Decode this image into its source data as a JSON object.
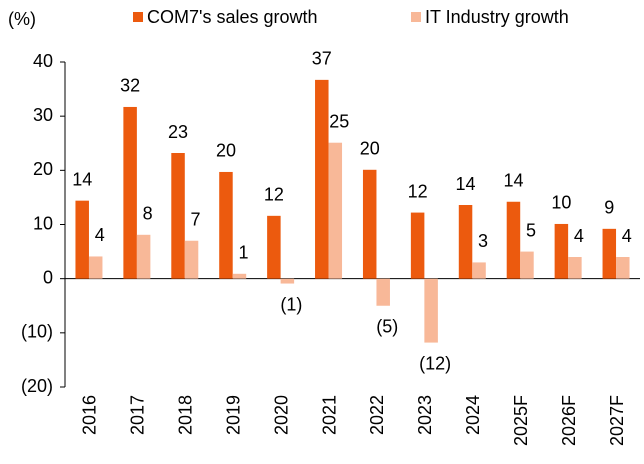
{
  "chart_data": {
    "type": "bar",
    "y_label": "(%)",
    "categories": [
      "2016",
      "2017",
      "2018",
      "2019",
      "2020",
      "2021",
      "2022",
      "2023",
      "2024",
      "2025F",
      "2026F",
      "2027F"
    ],
    "series": [
      {
        "name": "COM7's sales growth",
        "color": "#ec5a0e",
        "values": [
          14.4,
          31.7,
          23.2,
          19.7,
          11.6,
          36.7,
          20.1,
          12.2,
          13.6,
          14.2,
          10.1,
          9.2
        ],
        "value_labels": [
          "14",
          "32",
          "23",
          "20",
          "12",
          "37",
          "20",
          "12",
          "14",
          "14",
          "10",
          "9"
        ]
      },
      {
        "name": "IT Industry growth",
        "color": "#f8b898",
        "values": [
          4.1,
          8.1,
          7.0,
          0.9,
          -0.9,
          25.1,
          -5.0,
          -11.8,
          3.0,
          5.0,
          4.0,
          4.0
        ],
        "value_labels": [
          "4",
          "8",
          "7",
          "1",
          "(1)",
          "25",
          "(5)",
          "(12)",
          "3",
          "5",
          "4",
          "4"
        ]
      }
    ],
    "ylim": [
      -20,
      40
    ],
    "yticks": [
      {
        "value": -20,
        "label": "(20)"
      },
      {
        "value": -10,
        "label": "(10)"
      },
      0,
      10,
      20,
      30,
      40
    ],
    "legend": "top"
  }
}
